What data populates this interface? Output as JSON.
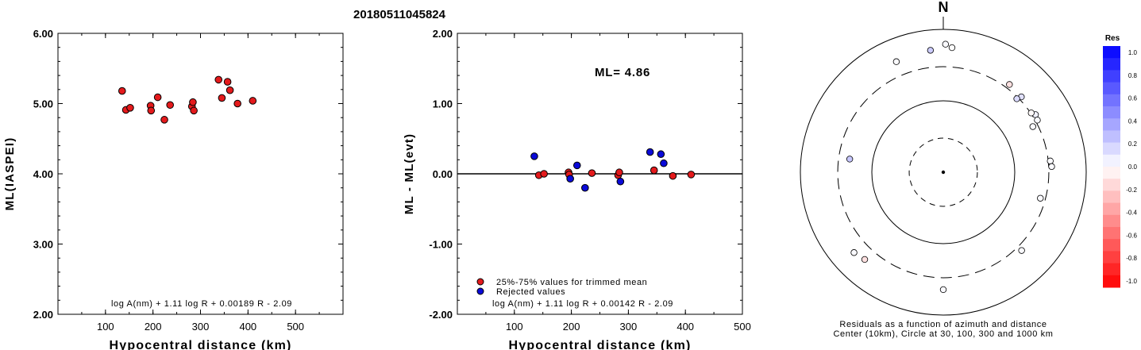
{
  "title": "20180511045824",
  "colors": {
    "red": "#e41a1c",
    "blue": "#0a0ad8",
    "axis": "#000000"
  },
  "chart_data": [
    {
      "type": "scatter",
      "id": "left",
      "xlabel": "Hypocentral distance (km)",
      "ylabel": "ML(IASPEI)",
      "xlim": [
        0,
        600
      ],
      "ylim": [
        2.0,
        6.0
      ],
      "xticks": [
        100,
        200,
        300,
        400,
        500
      ],
      "yticks": [
        2.0,
        3.0,
        4.0,
        5.0,
        6.0
      ],
      "ytick_labels": [
        "2.00",
        "3.00",
        "4.00",
        "5.00",
        "6.00"
      ],
      "formula": "log A(nm) + 1.11 log R + 0.00189 R - 2.09",
      "series": [
        {
          "color": "red",
          "points": [
            [
              135,
              5.18
            ],
            [
              143,
              4.91
            ],
            [
              152,
              4.94
            ],
            [
              195,
              4.97
            ],
            [
              196,
              4.9
            ],
            [
              210,
              5.09
            ],
            [
              224,
              4.77
            ],
            [
              236,
              4.98
            ],
            [
              282,
              4.96
            ],
            [
              284,
              5.02
            ],
            [
              286,
              4.9
            ],
            [
              338,
              5.34
            ],
            [
              345,
              5.08
            ],
            [
              357,
              5.31
            ],
            [
              362,
              5.19
            ],
            [
              378,
              5.0
            ],
            [
              410,
              5.04
            ]
          ]
        }
      ]
    },
    {
      "type": "scatter",
      "id": "middle",
      "xlabel": "Hypocentral distance (km)",
      "ylabel": "ML - ML(evt)",
      "xlim": [
        0,
        500
      ],
      "ylim": [
        -2.0,
        2.0
      ],
      "xticks": [
        100,
        200,
        300,
        400,
        500
      ],
      "yticks": [
        -2.0,
        -1.0,
        0.0,
        1.0,
        2.0
      ],
      "ytick_labels": [
        "-2.00",
        "-1.00",
        "0.00",
        "1.00",
        "2.00"
      ],
      "annotation": "ML= 4.86",
      "legend": [
        {
          "label": "25%-75% values for trimmed mean",
          "color": "red"
        },
        {
          "label": "Rejected values",
          "color": "blue"
        }
      ],
      "legend_position": "bottom-left",
      "formula": "log A(nm) + 1.11 log R + 0.00142 R - 2.09",
      "series": [
        {
          "name": "25%-75% values for trimmed mean",
          "color": "red",
          "points": [
            [
              143,
              -0.02
            ],
            [
              152,
              0.0
            ],
            [
              195,
              0.02
            ],
            [
              196,
              -0.01
            ],
            [
              236,
              0.01
            ],
            [
              282,
              -0.02
            ],
            [
              284,
              0.02
            ],
            [
              345,
              0.05
            ],
            [
              378,
              -0.03
            ],
            [
              410,
              -0.01
            ]
          ]
        },
        {
          "name": "Rejected values",
          "color": "blue",
          "points": [
            [
              135,
              0.25
            ],
            [
              198,
              -0.07
            ],
            [
              210,
              0.12
            ],
            [
              224,
              -0.2
            ],
            [
              286,
              -0.11
            ],
            [
              338,
              0.31
            ],
            [
              357,
              0.28
            ],
            [
              362,
              0.15
            ]
          ]
        }
      ]
    },
    {
      "type": "polar",
      "id": "right",
      "north_label": "N",
      "caption_line1": "Residuals as a function of azimuth and distance",
      "caption_line2": "Center (10km), Circle at 30, 100, 300 and 1000 km",
      "colorbar": {
        "title": "Res",
        "tick_labels": [
          "1.0",
          "0.8",
          "0.6",
          "0.4",
          "0.2",
          "0.0",
          "-0.2",
          "-0.4",
          "-0.6",
          "-0.8",
          "-1.0"
        ]
      },
      "stations": [
        {
          "az": 46,
          "dist_km": 330,
          "res": 0.12
        },
        {
          "az": 58,
          "dist_km": 332,
          "res": 0.05
        },
        {
          "az": 56,
          "dist_km": 305,
          "res": -0.02
        },
        {
          "az": 61,
          "dist_km": 320,
          "res": 0.02
        },
        {
          "az": 45,
          "dist_km": 285,
          "res": 0.14
        },
        {
          "az": 37,
          "dist_km": 345,
          "res": -0.12
        },
        {
          "az": 63,
          "dist_km": 255,
          "res": 0.02
        },
        {
          "az": 4,
          "dist_km": 560,
          "res": 0.0
        },
        {
          "az": 1,
          "dist_km": 620,
          "res": 0.02
        },
        {
          "az": 354,
          "dist_km": 520,
          "res": 0.2
        },
        {
          "az": 337,
          "dist_km": 480,
          "res": 0.02
        },
        {
          "az": 84,
          "dist_km": 320,
          "res": 0.02
        },
        {
          "az": 87,
          "dist_km": 330,
          "res": 0.02
        },
        {
          "az": 105,
          "dist_km": 255,
          "res": 0.02
        },
        {
          "az": 135,
          "dist_km": 355,
          "res": 0.02
        },
        {
          "az": 180,
          "dist_km": 440,
          "res": 0.02
        },
        {
          "az": 222,
          "dist_km": 440,
          "res": -0.12
        },
        {
          "az": 228,
          "dist_km": 480,
          "res": 0.02
        },
        {
          "az": 278,
          "dist_km": 210,
          "res": 0.22
        }
      ]
    }
  ]
}
